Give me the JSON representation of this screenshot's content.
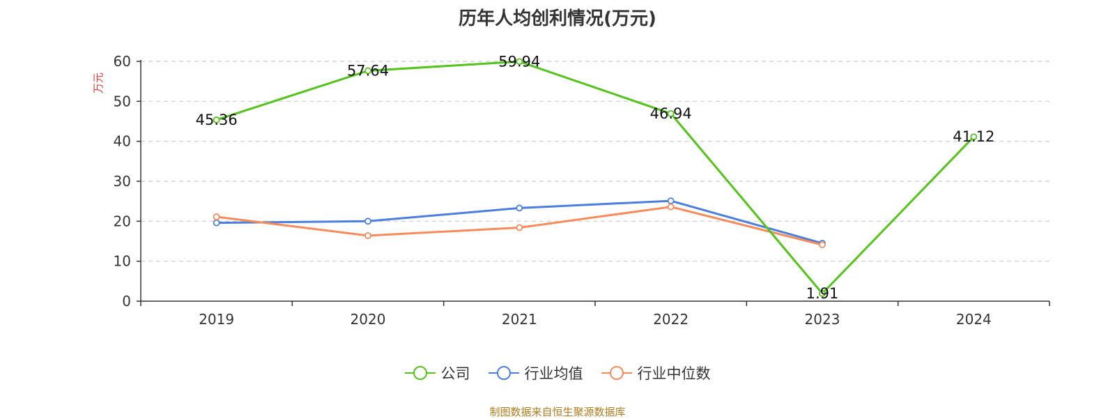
{
  "chart_data": {
    "type": "line",
    "title": "历年人均创利情况(万元)",
    "ylabel": "万元",
    "xlabel": "",
    "ylim": [
      0,
      60
    ],
    "yticks": [
      0,
      10,
      20,
      30,
      40,
      50,
      60
    ],
    "categories": [
      "2019",
      "2020",
      "2021",
      "2022",
      "2023",
      "2024"
    ],
    "series": [
      {
        "name": "公司",
        "color": "#52c41a",
        "values": [
          45.36,
          57.64,
          59.94,
          46.94,
          1.91,
          41.12
        ],
        "show_labels": true
      },
      {
        "name": "行业均值",
        "color": "#4a7fe0",
        "values": [
          19.6,
          20.0,
          23.3,
          25.1,
          14.5,
          null
        ],
        "show_labels": false
      },
      {
        "name": "行业中位数",
        "color": "#f98a5a",
        "values": [
          21.1,
          16.4,
          18.4,
          23.6,
          14.1,
          null
        ],
        "show_labels": false
      }
    ],
    "labels": [
      "45.36",
      "57.64",
      "59.94",
      "46.94",
      "1.91",
      "41.12"
    ],
    "grid": true,
    "legend_position": "bottom-center"
  },
  "footer": {
    "source": "制图数据来自恒生聚源数据库"
  }
}
